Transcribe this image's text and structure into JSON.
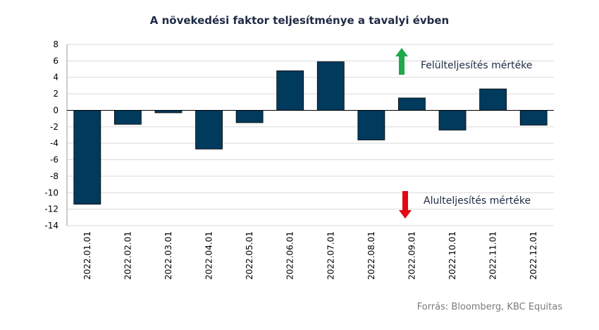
{
  "chart_data": {
    "type": "bar",
    "title": "A növekedési faktor teljesítménye  a tavalyi évben",
    "categories": [
      "2022.01.01",
      "2022.02.01",
      "2022.03.01",
      "2022.04.01",
      "2022.05.01",
      "2022.06.01",
      "2022.07.01",
      "2022.08.01",
      "2022.09.01",
      "2022.10.01",
      "2022.11.01",
      "2022.12.01"
    ],
    "values": [
      -11.4,
      -1.7,
      -0.3,
      -4.7,
      -1.5,
      4.8,
      5.9,
      -3.6,
      1.5,
      -2.4,
      2.6,
      -1.8
    ],
    "ylim": [
      -14,
      8
    ],
    "yticks": [
      "8",
      "6",
      "4",
      "2",
      "0",
      "-2",
      "-4",
      "-6",
      "-8",
      "-10",
      "-12",
      "-14"
    ],
    "grid": true,
    "bar_color": "#003a5d",
    "annotations": {
      "up_label": "Felülteljesítés mértéke",
      "down_label": "Alulteljesítés mértéke",
      "up_color": "#1faa4a",
      "down_color": "#e30613"
    },
    "source": "Forrás: Bloomberg,  KBC Equitas"
  }
}
